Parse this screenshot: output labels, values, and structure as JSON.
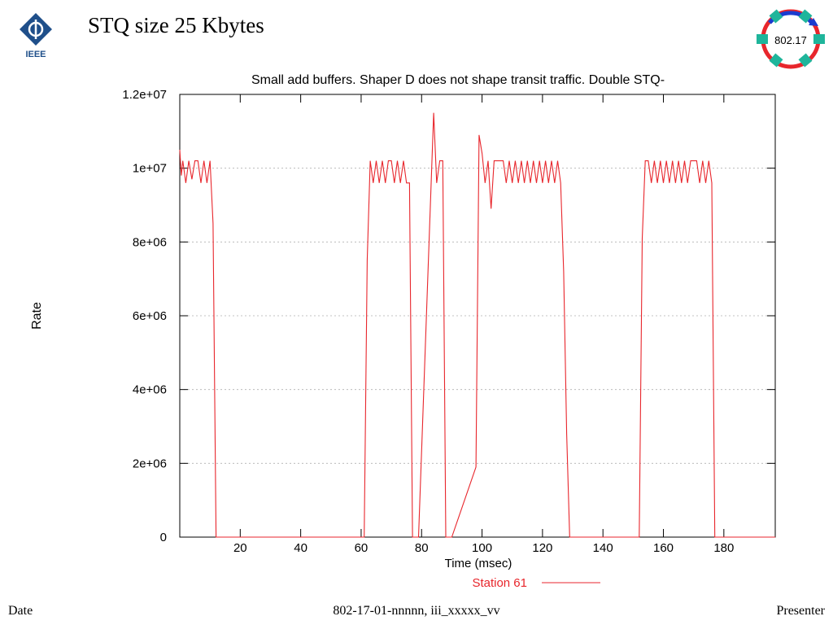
{
  "slide": {
    "title": "STQ size 25 Kbytes",
    "footer": {
      "left": "Date",
      "center": "802-17-01-nnnnn, iii_xxxxx_vv",
      "right": "Presenter"
    }
  },
  "logos": {
    "left": {
      "icon": "ieee-logo-icon",
      "text": "IEEE",
      "color": "#1f4f8a"
    },
    "right": {
      "icon": "ring-802-17-logo-icon",
      "text": "802.17",
      "ring_colors": [
        "#e8262c",
        "#1a3ccf"
      ],
      "node_color": "#1fb59b"
    }
  },
  "chart_data": {
    "type": "line",
    "title": "Small add buffers. Shaper D does not shape transit traffic. Double STQ-",
    "xlabel": "Time (msec)",
    "ylabel": "Rate",
    "xlim": [
      0,
      197
    ],
    "ylim": [
      0,
      12000000
    ],
    "x_ticks": [
      20,
      40,
      60,
      80,
      100,
      120,
      140,
      160,
      180
    ],
    "x_tick_labels": [
      "20",
      "40",
      "60",
      "80",
      "100",
      "120",
      "140",
      "160",
      "180"
    ],
    "y_ticks": [
      0,
      2000000,
      4000000,
      6000000,
      8000000,
      10000000,
      12000000
    ],
    "y_tick_labels": [
      "0",
      "2e+06",
      "4e+06",
      "6e+06",
      "8e+06",
      "1e+07",
      "1.2e+07"
    ],
    "grid": "horizontal dotted",
    "legend_position": "bottom",
    "series": [
      {
        "name": "Station 61",
        "color": "#e8262c",
        "x": [
          0,
          0.5,
          1,
          2,
          3,
          4,
          5,
          6,
          7,
          8,
          9,
          10,
          11,
          12,
          61,
          62,
          63,
          64,
          65,
          66,
          67,
          68,
          69,
          70,
          71,
          72,
          73,
          74,
          75,
          76,
          77,
          78,
          79,
          84,
          85,
          86,
          87,
          88,
          89,
          90,
          98,
          99,
          100,
          101,
          102,
          103,
          104,
          105,
          106,
          107,
          108,
          109,
          110,
          111,
          112,
          113,
          114,
          115,
          116,
          117,
          118,
          119,
          120,
          121,
          122,
          123,
          124,
          125,
          126,
          127,
          128,
          129,
          130,
          131,
          152,
          153,
          154,
          155,
          156,
          157,
          158,
          159,
          160,
          161,
          162,
          163,
          164,
          165,
          166,
          167,
          168,
          169,
          170,
          171,
          172,
          173,
          174,
          175,
          176,
          177,
          197
        ],
        "y": [
          10500000,
          9800000,
          10200000,
          9600000,
          10200000,
          9700000,
          10200000,
          10200000,
          9600000,
          10200000,
          9600000,
          10200000,
          8500000,
          0,
          0,
          7500000,
          10200000,
          9600000,
          10200000,
          9600000,
          10200000,
          9600000,
          10200000,
          10200000,
          9600000,
          10200000,
          9600000,
          10200000,
          9600000,
          9600000,
          0,
          0,
          0,
          11500000,
          9600000,
          10200000,
          10200000,
          0,
          0,
          0,
          1900000,
          10900000,
          10400000,
          9600000,
          10200000,
          8900000,
          10200000,
          10200000,
          10200000,
          10200000,
          9600000,
          10200000,
          9600000,
          10200000,
          9600000,
          10200000,
          9600000,
          10200000,
          9600000,
          10200000,
          9600000,
          10200000,
          9600000,
          10200000,
          9600000,
          10200000,
          9600000,
          10200000,
          9600000,
          7200000,
          2800000,
          0,
          0,
          0,
          0,
          8100000,
          10200000,
          10200000,
          9600000,
          10200000,
          9600000,
          10200000,
          9600000,
          10200000,
          9600000,
          10200000,
          9600000,
          10200000,
          9600000,
          10200000,
          9600000,
          10200000,
          10200000,
          10200000,
          9600000,
          10200000,
          9600000,
          10200000,
          9600000,
          0,
          0
        ]
      }
    ]
  }
}
